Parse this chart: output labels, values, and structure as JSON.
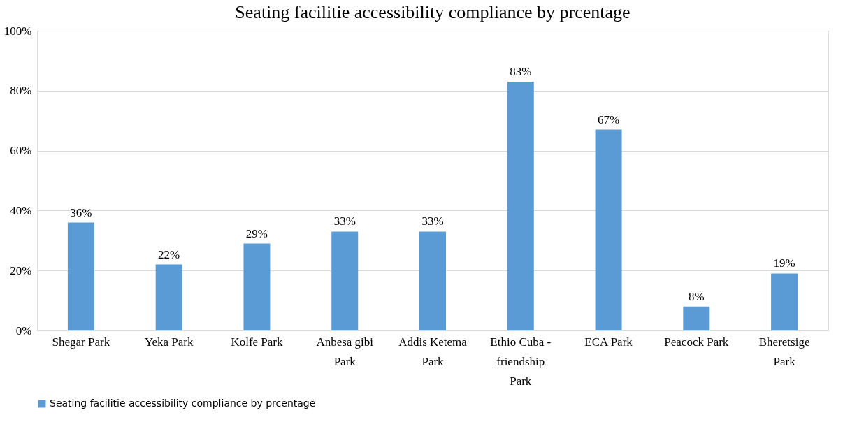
{
  "chart_data": {
    "type": "bar",
    "title": "Seating facilitie accessibility compliance by prcentage",
    "categories": [
      "Shegar Park",
      "Yeka Park",
      "Kolfe Park",
      "Anbesa gibi Park",
      "Addis Ketema Park",
      "Ethio Cuba - friendship Park",
      "ECA Park",
      "Peacock Park",
      "Bheretsige Park"
    ],
    "series": [
      {
        "name": "Seating facilitie accessibility compliance by prcentage",
        "color": "#5b9bd5",
        "values": [
          36,
          22,
          29,
          33,
          33,
          83,
          67,
          8,
          19
        ],
        "value_labels": [
          "36%",
          "22%",
          "29%",
          "33%",
          "33%",
          "83%",
          "67%",
          "8%",
          "19%"
        ]
      }
    ],
    "ylim": [
      0,
      100
    ],
    "yticks": [
      {
        "value": 0,
        "label": "0%"
      },
      {
        "value": 20,
        "label": "20%"
      },
      {
        "value": 40,
        "label": "40%"
      },
      {
        "value": 60,
        "label": "60%"
      },
      {
        "value": 80,
        "label": "80%"
      },
      {
        "value": 100,
        "label": "100%"
      }
    ],
    "grid": "y",
    "legend": "bottom"
  }
}
